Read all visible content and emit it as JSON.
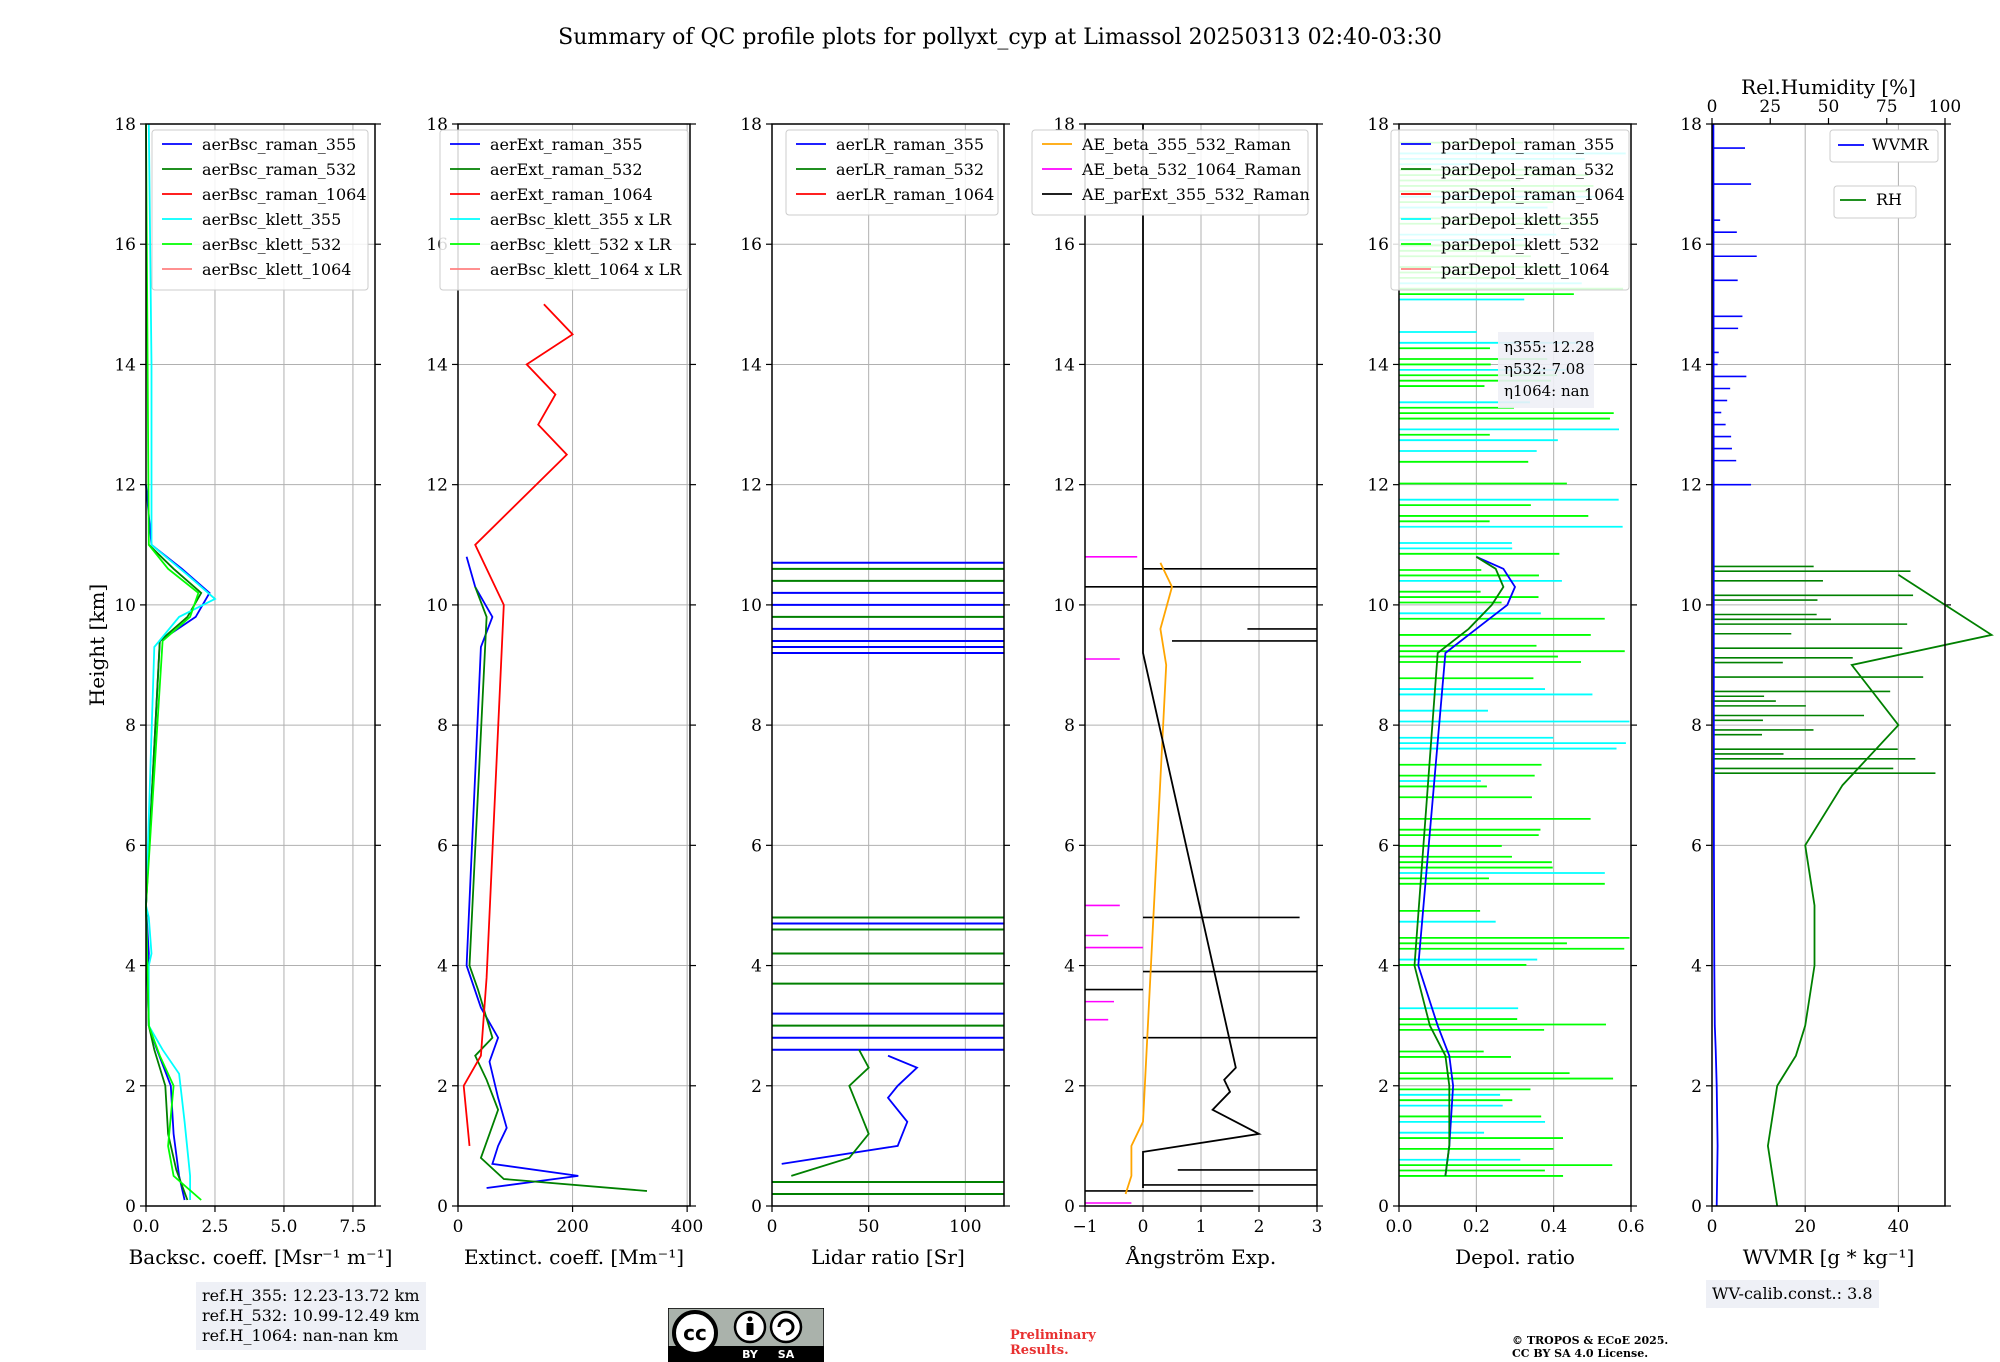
{
  "title": "Summary of QC profile plots for pollyxt_cyp at Limassol 20250313 02:40-03:30",
  "ylabel": "Height [km]",
  "panels": [
    {
      "xlabel": "Backsc. coeff. [Msr⁻¹ m⁻¹]",
      "xticks": [
        "0.0",
        "2.5",
        "5.0",
        "7.5"
      ]
    },
    {
      "xlabel": "Extinct. coeff. [Mm⁻¹]",
      "xticks": [
        "0",
        "200",
        "400"
      ]
    },
    {
      "xlabel": "Lidar ratio [Sr]",
      "xticks": [
        "0",
        "50",
        "100"
      ]
    },
    {
      "xlabel": "Ångström Exp.",
      "xticks": [
        "−1",
        "0",
        "1",
        "2",
        "3"
      ]
    },
    {
      "xlabel": "Depol. ratio",
      "xticks": [
        "0.0",
        "0.2",
        "0.4",
        "0.6"
      ]
    },
    {
      "xlabel": "WVMR [g * kg⁻¹]",
      "xticks": [
        "0",
        "20",
        "40"
      ],
      "top_label": "Rel.Humidity [%]",
      "top_ticks": [
        "0",
        "25",
        "50",
        "75",
        "100"
      ]
    }
  ],
  "yticks": [
    "0",
    "2",
    "4",
    "6",
    "8",
    "10",
    "12",
    "14",
    "16",
    "18"
  ],
  "legends": {
    "bsc": [
      "aerBsc_raman_355",
      "aerBsc_raman_532",
      "aerBsc_raman_1064",
      "aerBsc_klett_355",
      "aerBsc_klett_532",
      "aerBsc_klett_1064"
    ],
    "ext": [
      "aerExt_raman_355",
      "aerExt_raman_532",
      "aerExt_raman_1064",
      "aerBsc_klett_355 x LR",
      "aerBsc_klett_532 x LR",
      "aerBsc_klett_1064 x LR"
    ],
    "lr": [
      "aerLR_raman_355",
      "aerLR_raman_532",
      "aerLR_raman_1064"
    ],
    "ae": [
      "AE_beta_355_532_Raman",
      "AE_beta_532_1064_Raman",
      "AE_parExt_355_532_Raman"
    ],
    "dep": [
      "parDepol_raman_355",
      "parDepol_raman_532",
      "parDepol_raman_1064",
      "parDepol_klett_355",
      "parDepol_klett_532",
      "parDepol_klett_1064"
    ],
    "wv": [
      "WVMR",
      "RH"
    ]
  },
  "eta": [
    "η355: 12.28",
    "η532: 7.08",
    "η1064: nan"
  ],
  "refh": [
    "ref.H_355: 12.23-13.72 km",
    "ref.H_532: 10.99-12.49 km",
    "ref.H_1064: nan-nan km"
  ],
  "wv_calib": "WV-calib.const.: 3.8",
  "cc": {
    "by": "BY",
    "sa": "SA"
  },
  "preliminary": [
    "Preliminary",
    "Results."
  ],
  "copyright": [
    "© TROPOS & ECoE 2025.",
    "CC BY SA 4.0 License."
  ],
  "colors": {
    "c355": "#0000ff",
    "c532": "#008000",
    "c1064": "#ff0000",
    "k355": "#00ffff",
    "k532": "#00ff00",
    "k1064": "#ff8080",
    "ae1": "#ffa500",
    "ae2": "#ff00ff",
    "ae3": "#000000"
  },
  "chart_data": [
    {
      "type": "line",
      "panel": "backscatter",
      "xlim": [
        0,
        8
      ],
      "ylim": [
        0,
        18
      ],
      "grid": true,
      "series": [
        {
          "name": "aerBsc_raman_355",
          "x": [
            1.4,
            1.2,
            1.0,
            0.9,
            0.4,
            0.1,
            0.05,
            0.1,
            0.05,
            0.0,
            0.5,
            1.8,
            2.3,
            1.3,
            0.2,
            0.0
          ],
          "y": [
            0.1,
            0.5,
            1.2,
            2.0,
            2.6,
            3.0,
            3.8,
            4.2,
            4.6,
            5.0,
            9.4,
            9.8,
            10.2,
            10.6,
            11.0,
            12.0
          ]
        },
        {
          "name": "aerBsc_raman_532",
          "x": [
            1.5,
            1.1,
            0.8,
            0.7,
            0.3,
            0.1,
            0.05,
            0.0,
            0.5,
            1.5,
            2.0,
            1.0,
            0.1
          ],
          "y": [
            0.1,
            0.6,
            1.2,
            2.0,
            2.6,
            3.0,
            4.0,
            5.0,
            9.4,
            9.8,
            10.2,
            10.6,
            11.0
          ]
        },
        {
          "name": "aerBsc_klett_355",
          "x": [
            1.6,
            1.6,
            1.4,
            1.2,
            0.6,
            0.1,
            0.1,
            0.2,
            0.1,
            0.0,
            0.3,
            1.2,
            2.5,
            1.5,
            0.2,
            0.2,
            0.1
          ],
          "y": [
            0.1,
            0.5,
            1.4,
            2.2,
            2.6,
            3.0,
            4.0,
            4.2,
            4.8,
            5.0,
            9.3,
            9.8,
            10.1,
            10.5,
            11.0,
            14.0,
            18.0
          ]
        },
        {
          "name": "aerBsc_klett_532",
          "x": [
            2.0,
            1.0,
            0.8,
            1.0,
            0.5,
            0.1,
            0.0,
            0.6,
            1.6,
            1.9,
            0.8,
            0.1,
            0.0
          ],
          "y": [
            0.1,
            0.5,
            1.0,
            2.0,
            2.5,
            3.0,
            5.0,
            9.4,
            9.8,
            10.2,
            10.6,
            11.0,
            18.0
          ]
        }
      ]
    },
    {
      "type": "line",
      "panel": "extinction",
      "xlim": [
        0,
        400
      ],
      "ylim": [
        0,
        18
      ],
      "grid": true,
      "series": [
        {
          "name": "aerExt_raman_355",
          "x": [
            50,
            210,
            60,
            70,
            85,
            70,
            55,
            70,
            40,
            15,
            40,
            60,
            30,
            15
          ],
          "y": [
            0.3,
            0.5,
            0.7,
            1.0,
            1.3,
            1.8,
            2.4,
            2.8,
            3.3,
            4.0,
            9.3,
            9.8,
            10.3,
            10.8
          ]
        },
        {
          "name": "aerExt_raman_532",
          "x": [
            330,
            80,
            40,
            55,
            70,
            50,
            30,
            60,
            35,
            20,
            50,
            30
          ],
          "y": [
            0.25,
            0.45,
            0.8,
            1.2,
            1.6,
            2.1,
            2.5,
            2.8,
            3.6,
            4.0,
            9.8,
            10.3
          ]
        },
        {
          "name": "aerExt_raman_1064",
          "x": [
            20,
            10,
            40,
            50,
            80,
            30,
            190,
            140,
            170,
            120,
            200,
            150
          ],
          "y": [
            1.0,
            2.0,
            2.5,
            3.8,
            10.0,
            11.0,
            12.5,
            13.0,
            13.5,
            14.0,
            14.5,
            15.0
          ]
        }
      ]
    },
    {
      "type": "line",
      "panel": "lidar_ratio",
      "xlim": [
        0,
        120
      ],
      "ylim": [
        0,
        18
      ],
      "grid": true,
      "series": [
        {
          "name": "aerLR_raman_355",
          "x": [
            5,
            65,
            70,
            60,
            65,
            75,
            60
          ],
          "y": [
            0.7,
            1.0,
            1.4,
            1.8,
            2.0,
            2.3,
            2.5
          ]
        },
        {
          "name": "aerLR_raman_532",
          "x": [
            10,
            40,
            50,
            45,
            40,
            50,
            45
          ],
          "y": [
            0.5,
            0.8,
            1.2,
            1.6,
            2.0,
            2.3,
            2.6
          ]
        }
      ]
    },
    {
      "type": "line",
      "panel": "angstrom",
      "xlim": [
        -1,
        3
      ],
      "ylim": [
        0,
        18
      ],
      "grid": true,
      "series": [
        {
          "name": "AE_beta_355_532_Raman",
          "x": [
            -0.3,
            -0.2,
            -0.2,
            0.0,
            0.4,
            0.3,
            0.5,
            0.3
          ],
          "y": [
            0.2,
            0.5,
            1.0,
            1.4,
            9.0,
            9.6,
            10.3,
            10.7
          ]
        },
        {
          "name": "AE_parExt_355_532_Raman",
          "x": [
            0.0,
            0.0,
            2.0,
            1.2,
            1.5,
            1.4,
            1.6,
            0.0,
            0.0
          ],
          "y": [
            0.3,
            0.9,
            1.2,
            1.6,
            1.9,
            2.1,
            2.3,
            9.2,
            18.0
          ]
        }
      ]
    },
    {
      "type": "line",
      "panel": "depol",
      "xlim": [
        0,
        0.6
      ],
      "ylim": [
        0,
        18
      ],
      "grid": true,
      "series": [
        {
          "name": "parDepol_raman_355",
          "x": [
            0.12,
            0.13,
            0.14,
            0.13,
            0.1,
            0.05,
            0.12,
            0.2,
            0.28,
            0.3,
            0.27,
            0.2
          ],
          "y": [
            0.5,
            1.0,
            2.0,
            2.5,
            3.0,
            4.0,
            9.2,
            9.6,
            10.0,
            10.3,
            10.6,
            10.8
          ]
        },
        {
          "name": "parDepol_raman_532",
          "x": [
            0.12,
            0.13,
            0.13,
            0.12,
            0.08,
            0.04,
            0.1,
            0.18,
            0.24,
            0.27,
            0.25,
            0.2
          ],
          "y": [
            0.5,
            1.0,
            2.0,
            2.5,
            3.0,
            4.0,
            9.2,
            9.6,
            10.0,
            10.3,
            10.6,
            10.8
          ]
        }
      ]
    },
    {
      "type": "line",
      "panel": "water_vapour",
      "xlim": [
        0,
        50
      ],
      "ylim": [
        0,
        18
      ],
      "grid": true,
      "series": [
        {
          "name": "WVMR",
          "x": [
            1,
            1.2,
            1.0,
            0.8,
            0.6,
            0.5,
            0.4,
            0.3
          ],
          "y": [
            0,
            1,
            2,
            2.6,
            3.0,
            4.0,
            6.0,
            18
          ]
        },
        {
          "name": "RH",
          "x": [
            14,
            12,
            14,
            18,
            20,
            22,
            22,
            20,
            28,
            40,
            30,
            60,
            50,
            40
          ],
          "y": [
            0,
            1,
            2,
            2.5,
            3.0,
            4.0,
            5.0,
            6.0,
            7.0,
            8.0,
            9.0,
            9.5,
            10.0,
            10.5
          ]
        }
      ]
    }
  ]
}
